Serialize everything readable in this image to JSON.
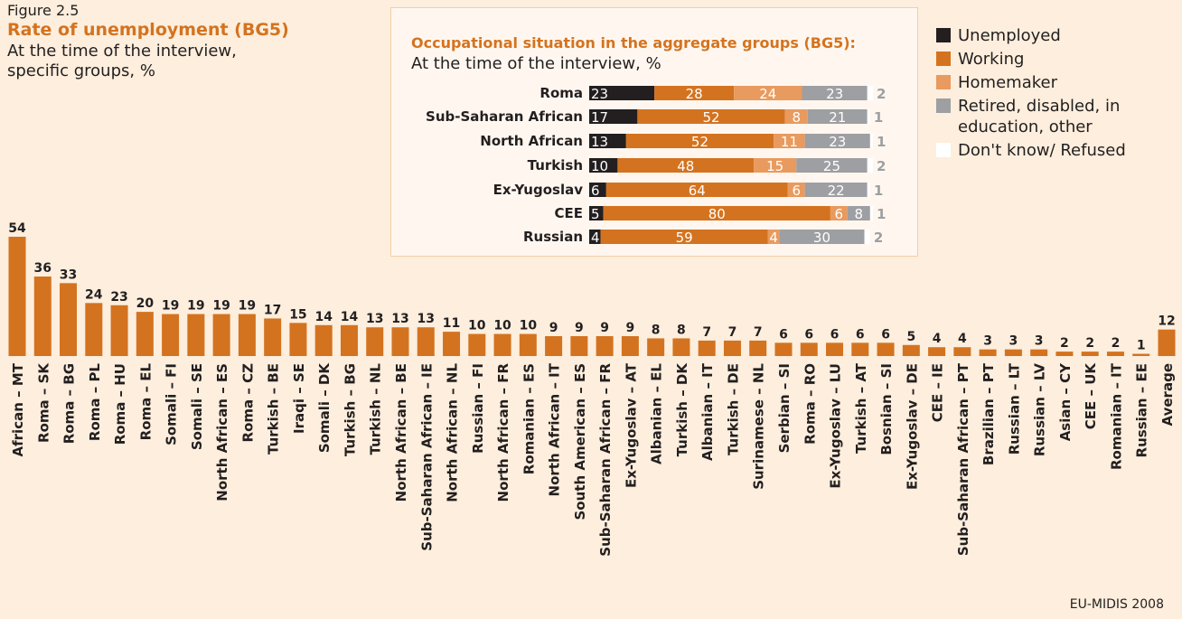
{
  "figure": "Figure 2.5",
  "source": "EU-MIDIS 2008",
  "chart_data": [
    {
      "type": "bar",
      "title": "Rate of unemployment (BG5)",
      "subtitle": "At the time of the interview, specific groups, %",
      "color": "#d4731f",
      "categories": [
        "African – MT",
        "Roma – SK",
        "Roma – BG",
        "Roma – PL",
        "Roma – HU",
        "Roma – EL",
        "Somali – FI",
        "Somali – SE",
        "North African – ES",
        "Roma – CZ",
        "Turkish – BE",
        "Iraqi – SE",
        "Somali – DK",
        "Turkish – BG",
        "Turkish – NL",
        "North African – BE",
        "Sub-Saharan African – IE",
        "North African – NL",
        "Russian – FI",
        "North African – FR",
        "Romanian – ES",
        "North African – IT",
        "South American – ES",
        "Sub-Saharan African – FR",
        "Ex-Yugoslav – AT",
        "Albanian – EL",
        "Turkish – DK",
        "Albanian – IT",
        "Turkish – DE",
        "Surinamese – NL",
        "Serbian – SI",
        "Roma – RO",
        "Ex-Yugoslav – LU",
        "Turkish – AT",
        "Bosnian – SI",
        "Ex-Yugoslav – DE",
        "CEE – IE",
        "Sub-Saharan African – PT",
        "Brazilian – PT",
        "Russian – LT",
        "Russian – LV",
        "Asian – CY",
        "CEE – UK",
        "Romanian – IT",
        "Russian – EE",
        "Average"
      ],
      "values": [
        54,
        36,
        33,
        24,
        23,
        20,
        19,
        19,
        19,
        19,
        17,
        15,
        14,
        14,
        13,
        13,
        13,
        11,
        10,
        10,
        10,
        9,
        9,
        9,
        9,
        8,
        8,
        7,
        7,
        7,
        6,
        6,
        6,
        6,
        6,
        5,
        4,
        4,
        3,
        3,
        3,
        2,
        2,
        2,
        1,
        12
      ]
    },
    {
      "type": "bar",
      "orientation": "horizontal",
      "stacked": true,
      "title": "Occupational situation in the aggregate groups (BG5):",
      "subtitle": "At the time of the interview, %",
      "categories": [
        "Roma",
        "Sub-Saharan African",
        "North African",
        "Turkish",
        "Ex-Yugoslav",
        "CEE",
        "Russian"
      ],
      "series": [
        {
          "name": "Unemployed",
          "color": "#231f20",
          "values": [
            23,
            17,
            13,
            10,
            6,
            5,
            4
          ]
        },
        {
          "name": "Working",
          "color": "#d4731f",
          "values": [
            28,
            52,
            52,
            48,
            64,
            80,
            59
          ]
        },
        {
          "name": "Homemaker",
          "color": "#e99a5e",
          "values": [
            24,
            8,
            11,
            15,
            6,
            6,
            4
          ]
        },
        {
          "name": "Retired, disabled, in education, other",
          "color": "#9d9fa2",
          "values": [
            23,
            21,
            23,
            25,
            22,
            8,
            30
          ]
        },
        {
          "name": "Don't know/ Refused",
          "color": "#ffffff",
          "values": [
            2,
            1,
            1,
            2,
            1,
            1,
            2
          ]
        }
      ]
    }
  ]
}
